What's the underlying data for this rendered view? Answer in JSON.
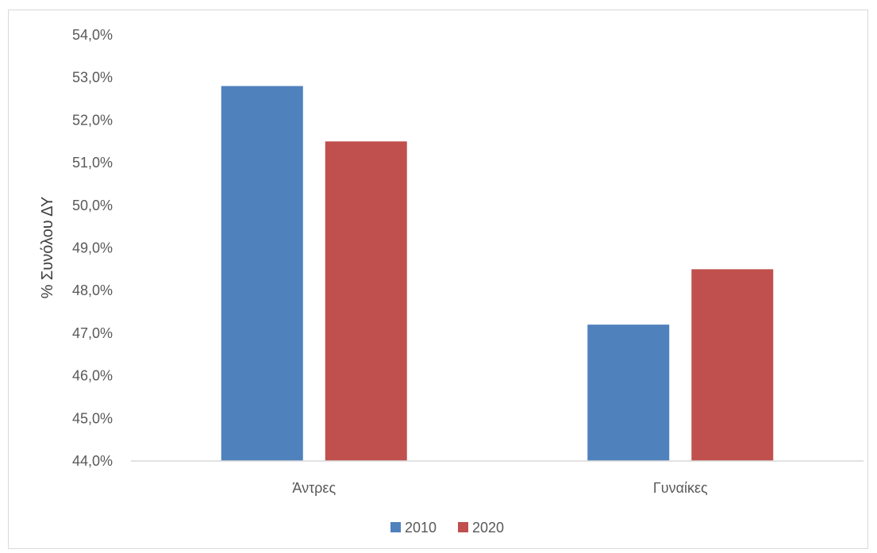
{
  "chart_data": {
    "type": "bar",
    "categories": [
      "Άντρες",
      "Γυναίκες"
    ],
    "series": [
      {
        "name": "2010",
        "values": [
          52.8,
          47.2
        ],
        "color": "#4f81bd"
      },
      {
        "name": "2020",
        "values": [
          51.5,
          48.5
        ],
        "color": "#c0504d"
      }
    ],
    "title": "",
    "xlabel": "",
    "ylabel": "% Συνόλου ΔΥ",
    "ylim": [
      44,
      54
    ],
    "ytick_step": 1,
    "ytick_labels": [
      "44,0%",
      "45,0%",
      "46,0%",
      "47,0%",
      "48,0%",
      "49,0%",
      "50,0%",
      "51,0%",
      "52,0%",
      "53,0%",
      "54,0%"
    ],
    "grid": false,
    "legend": "bottom",
    "axis_color": "#d9d9d9"
  }
}
